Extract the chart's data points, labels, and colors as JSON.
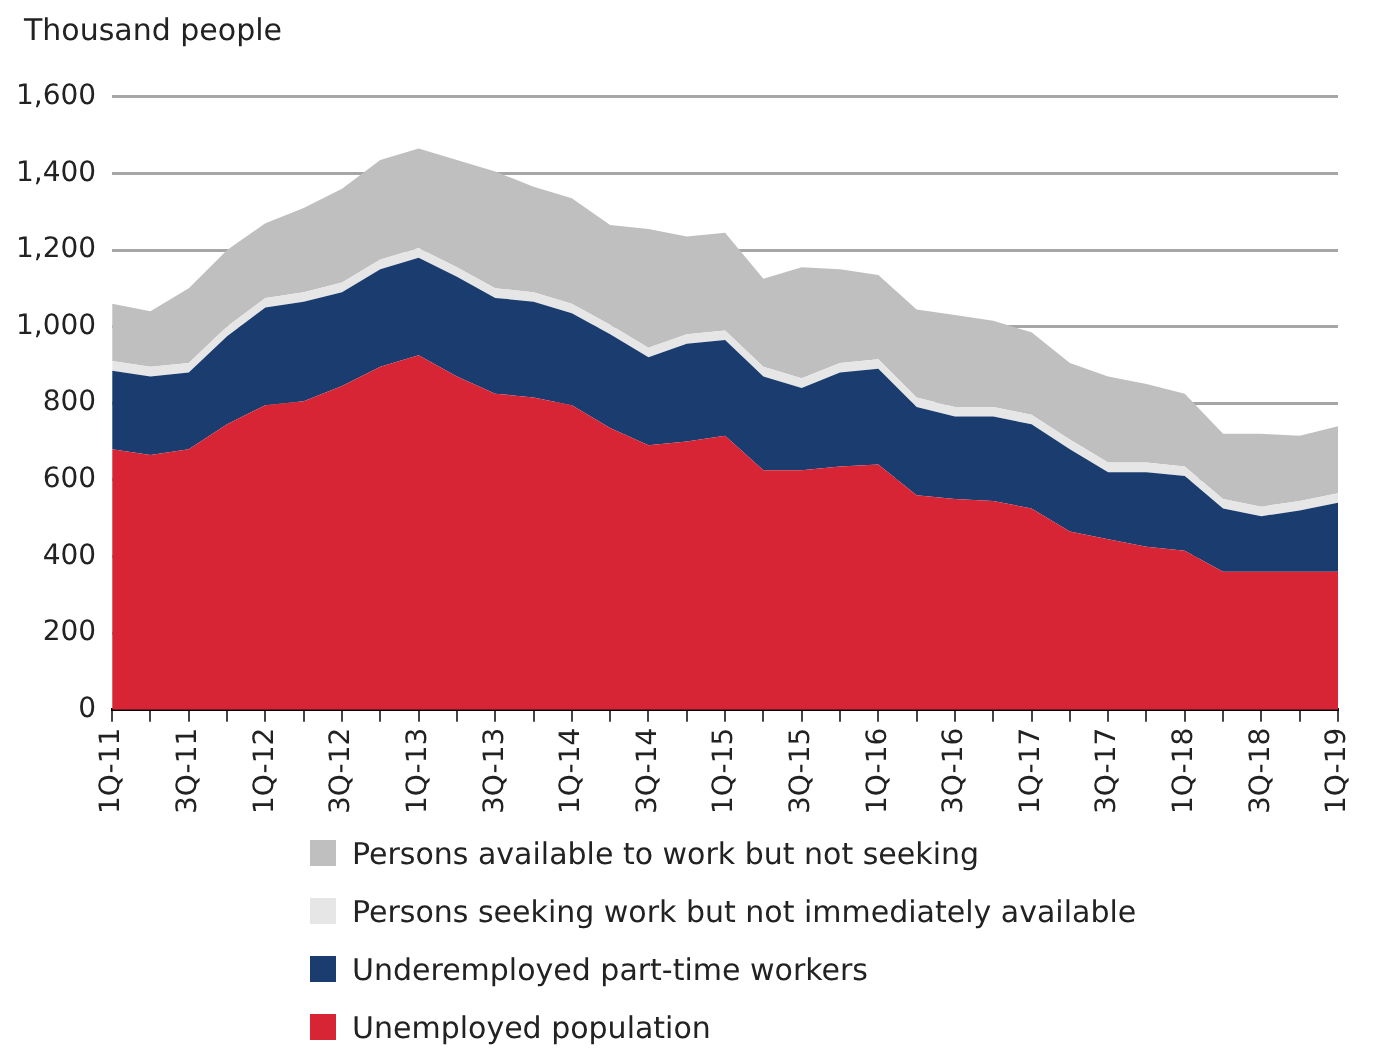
{
  "chart_data": {
    "type": "area",
    "stacked": true,
    "ylabel": "Thousand people",
    "legend": "bottom",
    "grid": "y",
    "categories": [
      "1Q-11",
      null,
      "3Q-11",
      null,
      "1Q-12",
      null,
      "3Q-12",
      null,
      "1Q-13",
      null,
      "3Q-13",
      null,
      "1Q-14",
      null,
      "3Q-14",
      null,
      "1Q-15",
      null,
      "3Q-15",
      null,
      "1Q-16",
      null,
      "3Q-16",
      null,
      "1Q-17",
      null,
      "3Q-17",
      null,
      "1Q-18",
      null,
      "3Q-18",
      null,
      "1Q-19"
    ],
    "ylim": [
      0,
      1600
    ],
    "yticks": [
      0,
      200,
      400,
      600,
      800,
      {
        "value": 1000,
        "label": "1,000"
      },
      {
        "value": 1200,
        "label": "1,200"
      },
      {
        "value": 1400,
        "label": "1,400"
      },
      {
        "value": 1600,
        "label": "1,600"
      }
    ],
    "series": [
      {
        "name": "Unemployed population",
        "color": "#d82536",
        "values": [
          680,
          665,
          680,
          745,
          795,
          805,
          845,
          895,
          925,
          870,
          825,
          815,
          795,
          735,
          690,
          700,
          715,
          625,
          625,
          635,
          640,
          560,
          550,
          545,
          525,
          465,
          445,
          425,
          415,
          360,
          360,
          360,
          360
        ]
      },
      {
        "name": "Underemployed part-time workers",
        "color": "#1a3c6e",
        "values": [
          205,
          205,
          200,
          230,
          255,
          260,
          245,
          255,
          255,
          260,
          250,
          250,
          240,
          245,
          230,
          255,
          250,
          245,
          215,
          245,
          250,
          230,
          215,
          220,
          220,
          215,
          175,
          195,
          195,
          165,
          145,
          160,
          180
        ]
      },
      {
        "name": "Persons seeking work but not immediately available",
        "color": "#e6e6e6",
        "values": [
          25,
          25,
          25,
          25,
          25,
          25,
          25,
          25,
          25,
          25,
          25,
          25,
          25,
          25,
          25,
          25,
          25,
          25,
          25,
          25,
          25,
          25,
          25,
          25,
          25,
          25,
          25,
          25,
          25,
          25,
          25,
          25,
          25
        ]
      },
      {
        "name": "Persons available to work but not seeking",
        "color": "#bfbfbf",
        "values": [
          150,
          145,
          195,
          200,
          195,
          220,
          245,
          260,
          260,
          280,
          305,
          275,
          275,
          260,
          310,
          255,
          255,
          230,
          290,
          245,
          220,
          230,
          240,
          225,
          215,
          200,
          225,
          205,
          190,
          170,
          190,
          170,
          175
        ]
      }
    ]
  }
}
